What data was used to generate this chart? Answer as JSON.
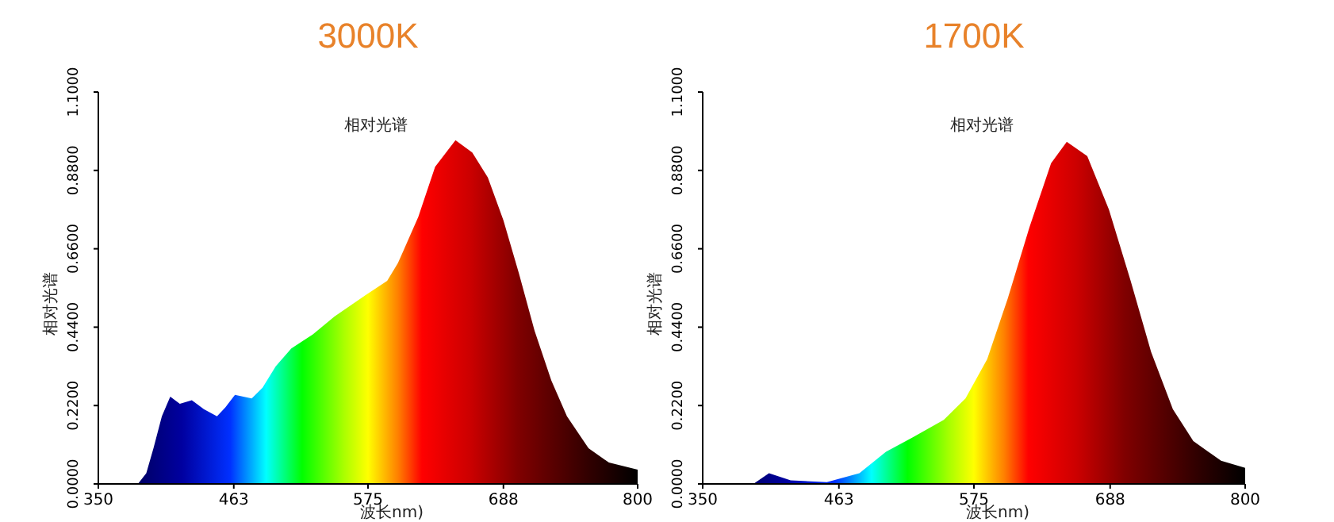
{
  "chart_data": [
    {
      "type": "area",
      "title": "3000K",
      "subtitle": "相对光谱",
      "xlabel": "波长nm)",
      "ylabel": "相对光谱",
      "xlim": [
        350,
        800
      ],
      "xticks": [
        350,
        463,
        575,
        688,
        800
      ],
      "ylim": [
        0,
        1.1
      ],
      "yticks": [
        {
          "value": 0,
          "label": "0.0000"
        },
        {
          "value": 0.22,
          "label": "0.2200"
        },
        {
          "value": 0.44,
          "label": "0.4400"
        },
        {
          "value": 0.66,
          "label": "0.6600"
        },
        {
          "value": 0.88,
          "label": "0.8800"
        },
        {
          "value": 1.1,
          "label": "1.1000"
        }
      ],
      "grid": false,
      "x": [
        350,
        383,
        390,
        396,
        403,
        410,
        418,
        428,
        438,
        449,
        456,
        464,
        478,
        487,
        498,
        511,
        529,
        547,
        573,
        591,
        600,
        617,
        631,
        648,
        662,
        675,
        688,
        701,
        714,
        728,
        741,
        759,
        776,
        800
      ],
      "series": [
        {
          "values": [
            0,
            0,
            0.03,
            0.1,
            0.19,
            0.245,
            0.225,
            0.235,
            0.21,
            0.19,
            0.215,
            0.25,
            0.24,
            0.27,
            0.33,
            0.38,
            0.42,
            0.47,
            0.53,
            0.57,
            0.62,
            0.75,
            0.89,
            0.965,
            0.93,
            0.86,
            0.74,
            0.59,
            0.43,
            0.29,
            0.19,
            0.1,
            0.06,
            0.04
          ]
        }
      ]
    },
    {
      "type": "area",
      "title": "1700K",
      "subtitle": "相对光谱",
      "xlabel": "波长nm)",
      "ylabel": "相对光谱",
      "xlim": [
        350,
        800
      ],
      "xticks": [
        350,
        463,
        575,
        688,
        800
      ],
      "ylim": [
        0,
        1.1
      ],
      "yticks": [
        {
          "value": 0,
          "label": "0.0000"
        },
        {
          "value": 0.22,
          "label": "0.2200"
        },
        {
          "value": 0.44,
          "label": "0.4400"
        },
        {
          "value": 0.66,
          "label": "0.6600"
        },
        {
          "value": 0.88,
          "label": "0.8800"
        },
        {
          "value": 1.1,
          "label": "1.1000"
        }
      ],
      "grid": false,
      "x": [
        350,
        392,
        405,
        423,
        453,
        480,
        502,
        524,
        550,
        568,
        586,
        603,
        621,
        639,
        652,
        669,
        687,
        705,
        722,
        740,
        757,
        780,
        800
      ],
      "series": [
        {
          "values": [
            0,
            0,
            0.03,
            0.01,
            0.005,
            0.03,
            0.09,
            0.13,
            0.18,
            0.24,
            0.35,
            0.52,
            0.72,
            0.9,
            0.96,
            0.92,
            0.77,
            0.57,
            0.37,
            0.21,
            0.12,
            0.065,
            0.045
          ]
        }
      ]
    }
  ]
}
